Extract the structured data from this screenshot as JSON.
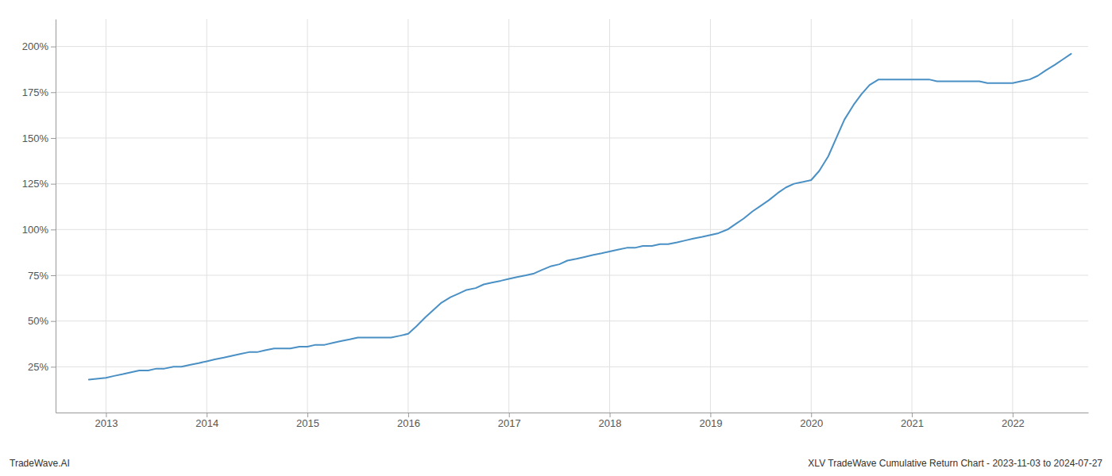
{
  "chart_data": {
    "type": "line",
    "annotations": [
      "TradeWave.AI",
      "XLV TradeWave Cumulative Return Chart - 2023-11-03 to 2024-07-27"
    ],
    "color": "#4a90c4",
    "grid": true,
    "x": [
      2012.83,
      2013.0,
      2013.08,
      2013.17,
      2013.25,
      2013.33,
      2013.42,
      2013.5,
      2013.58,
      2013.67,
      2013.75,
      2013.83,
      2013.92,
      2014.0,
      2014.08,
      2014.17,
      2014.25,
      2014.33,
      2014.42,
      2014.5,
      2014.58,
      2014.67,
      2014.75,
      2014.83,
      2014.92,
      2015.0,
      2015.08,
      2015.17,
      2015.25,
      2015.33,
      2015.42,
      2015.5,
      2015.58,
      2015.67,
      2015.75,
      2015.83,
      2015.92,
      2016.0,
      2016.08,
      2016.17,
      2016.25,
      2016.33,
      2016.42,
      2016.5,
      2016.58,
      2016.67,
      2016.75,
      2016.83,
      2016.92,
      2017.0,
      2017.08,
      2017.17,
      2017.25,
      2017.33,
      2017.42,
      2017.5,
      2017.58,
      2017.67,
      2017.75,
      2017.83,
      2017.92,
      2018.0,
      2018.08,
      2018.17,
      2018.25,
      2018.33,
      2018.42,
      2018.5,
      2018.58,
      2018.67,
      2018.75,
      2018.83,
      2018.92,
      2019.0,
      2019.08,
      2019.17,
      2019.25,
      2019.33,
      2019.42,
      2019.5,
      2019.58,
      2019.67,
      2019.75,
      2019.83,
      2019.92,
      2020.0,
      2020.08,
      2020.17,
      2020.25,
      2020.33,
      2020.42,
      2020.5,
      2020.58,
      2020.67,
      2020.75,
      2020.83,
      2020.92,
      2021.0,
      2021.08,
      2021.17,
      2021.25,
      2021.33,
      2021.42,
      2021.5,
      2021.58,
      2021.67,
      2021.75,
      2021.83,
      2021.92,
      2022.0,
      2022.08,
      2022.17,
      2022.25,
      2022.33,
      2022.42,
      2022.5,
      2022.58
    ],
    "values": [
      18,
      19,
      20,
      21,
      22,
      23,
      23,
      24,
      24,
      25,
      25,
      26,
      27,
      28,
      29,
      30,
      31,
      32,
      33,
      33,
      34,
      35,
      35,
      35,
      36,
      36,
      37,
      37,
      38,
      39,
      40,
      41,
      41,
      41,
      41,
      41,
      42,
      43,
      47,
      52,
      56,
      60,
      63,
      65,
      67,
      68,
      70,
      71,
      72,
      73,
      74,
      75,
      76,
      78,
      80,
      81,
      83,
      84,
      85,
      86,
      87,
      88,
      89,
      90,
      90,
      91,
      91,
      92,
      92,
      93,
      94,
      95,
      96,
      97,
      98,
      100,
      103,
      106,
      110,
      113,
      116,
      120,
      123,
      125,
      126,
      127,
      132,
      140,
      150,
      160,
      168,
      174,
      179,
      182,
      182,
      182,
      182,
      182,
      182,
      182,
      181,
      181,
      181,
      181,
      181,
      181,
      180,
      180,
      180,
      180,
      181,
      182,
      184,
      187,
      190,
      193,
      196
    ],
    "xlim": [
      2012.5,
      2022.75
    ],
    "xticks": [
      2013,
      2014,
      2015,
      2016,
      2017,
      2018,
      2019,
      2020,
      2021,
      2022
    ],
    "ylim": [
      0,
      215
    ],
    "yticks": [
      {
        "value": 25,
        "label": "25%"
      },
      {
        "value": 50,
        "label": "50%"
      },
      {
        "value": 75,
        "label": "75%"
      },
      {
        "value": 100,
        "label": "100%"
      },
      {
        "value": 125,
        "label": "125%"
      },
      {
        "value": 150,
        "label": "150%"
      },
      {
        "value": 175,
        "label": "175%"
      },
      {
        "value": 200,
        "label": "200%"
      }
    ]
  }
}
